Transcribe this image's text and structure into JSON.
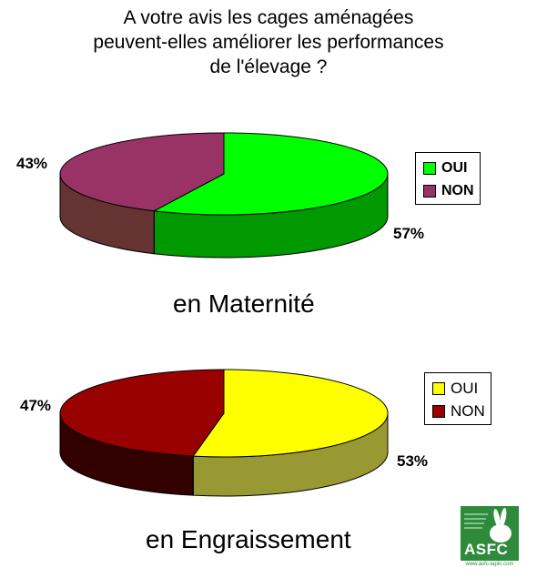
{
  "title_lines": [
    "A votre avis les cages aménagées",
    "peuvent-elles améliorer les performances",
    "de l'élevage ?"
  ],
  "chart_data": [
    {
      "type": "pie",
      "caption": "en Maternité",
      "slices": [
        {
          "label": "OUI",
          "value": 57,
          "display": "57%",
          "color": "#00ff00",
          "side_color": "#009900"
        },
        {
          "label": "NON",
          "value": 43,
          "display": "43%",
          "color": "#993366",
          "side_color": "#663333"
        }
      ],
      "legend_placement": "right"
    },
    {
      "type": "pie",
      "caption": "en Engraissement",
      "slices": [
        {
          "label": "OUI",
          "value": 53,
          "display": "53%",
          "color": "#ffff00",
          "side_color": "#999933"
        },
        {
          "label": "NON",
          "value": 47,
          "display": "47%",
          "color": "#990000",
          "side_color": "#330000"
        }
      ],
      "legend_placement": "right"
    }
  ],
  "logo": {
    "brand": "ASFC",
    "url": "www.asfc-lapin.com",
    "bg_color": "#2f8a3c"
  }
}
